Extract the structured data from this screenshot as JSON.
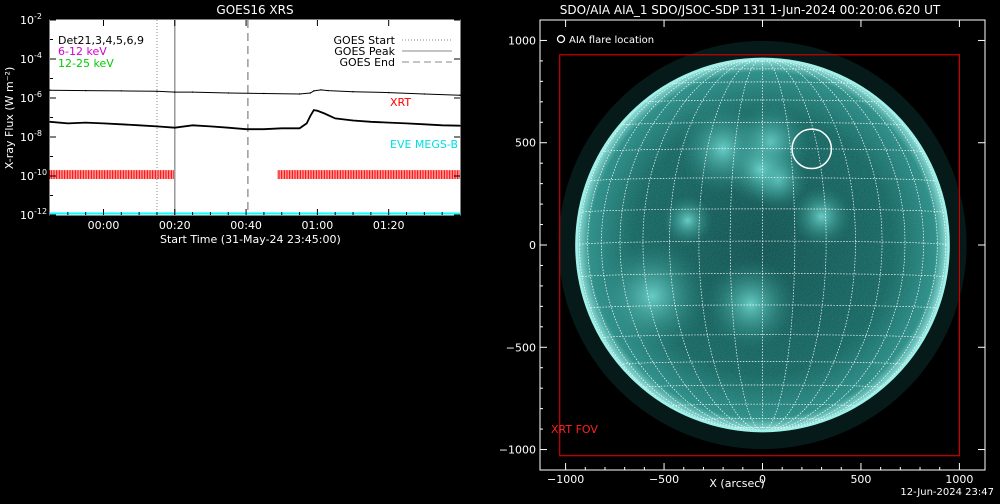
{
  "chart_data": [
    {
      "type": "line",
      "title": "GOES16 XRS",
      "ylabel": "X-ray Flux (W m⁻²)",
      "xlabel": "Start Time (31-May-24 23:45:00)",
      "x_unit": "minutes since 31-May-24 23:45:00",
      "xlim": [
        -15,
        100
      ],
      "ylim": [
        1e-12,
        0.01
      ],
      "yscale": "log",
      "x_ticks": [
        {
          "value": 0,
          "label": "00:00"
        },
        {
          "value": 20,
          "label": "00:20"
        },
        {
          "value": 40,
          "label": "00:40"
        },
        {
          "value": 60,
          "label": "01:00"
        },
        {
          "value": 80,
          "label": "01:20"
        }
      ],
      "y_ticks": [
        {
          "exp": -12,
          "base": "10",
          "power": "-12"
        },
        {
          "exp": -10,
          "base": "10",
          "power": "-10"
        },
        {
          "exp": -8,
          "base": "10",
          "power": "-8"
        },
        {
          "exp": -6,
          "base": "10",
          "power": "-6"
        },
        {
          "exp": -4,
          "base": "10",
          "power": "-4"
        },
        {
          "exp": -2,
          "base": "10",
          "power": "-2"
        }
      ],
      "legend_left": {
        "det": "Det21,3,4,5,6,9",
        "band1": "6-12 keV",
        "band2": "12-25 keV"
      },
      "legend_right": {
        "start": "GOES Start",
        "peak": "GOES Peak",
        "end": "GOES End"
      },
      "labels": {
        "xrt": "XRT",
        "eve": "EVE MEGS-B"
      },
      "vertical_lines": {
        "start": 15,
        "peak": 20,
        "end": 40.5
      },
      "series": [
        {
          "name": "long",
          "color": "#000000",
          "x": [
            -15,
            -5,
            5,
            15,
            20,
            25,
            35,
            45,
            55,
            58,
            59,
            61,
            63,
            70,
            80,
            90,
            100
          ],
          "y": [
            2.5e-06,
            2.4e-06,
            2.3e-06,
            2.2e-06,
            2e-06,
            2e-06,
            1.8e-06,
            1.7e-06,
            1.6e-06,
            1.8e-06,
            2.3e-06,
            2.6e-06,
            2.4e-06,
            2.1e-06,
            1.9e-06,
            1.6e-06,
            1.4e-06
          ]
        },
        {
          "name": "short",
          "color": "#000000",
          "x": [
            -15,
            -10,
            -5,
            0,
            5,
            10,
            15,
            20,
            25,
            30,
            35,
            40,
            45,
            50,
            55,
            57,
            58,
            59,
            60,
            62,
            65,
            70,
            75,
            80,
            85,
            90,
            95,
            100
          ],
          "y": [
            6e-08,
            5e-08,
            5.5e-08,
            5e-08,
            4.5e-08,
            4e-08,
            3.5e-08,
            3e-08,
            4e-08,
            3.5e-08,
            3e-08,
            2.5e-08,
            2.5e-08,
            2.8e-08,
            2.8e-08,
            5e-08,
            1.2e-07,
            2.4e-07,
            2.2e-07,
            1.6e-07,
            9e-08,
            7e-08,
            6e-08,
            5.5e-08,
            5e-08,
            4.5e-08,
            4e-08,
            3.8e-08
          ]
        }
      ],
      "coverage_bars": {
        "color": "#ff0000",
        "y_low": 7e-11,
        "y_high": 2e-10,
        "segments": [
          [
            -15,
            20
          ],
          [
            49,
            100
          ]
        ]
      },
      "eve_baseline": {
        "color": "#00ffff",
        "y": 1.2e-12
      }
    },
    {
      "type": "image",
      "title": "SDO/AIA AIA_1 SDO/JSOC-SDP 131  1-Jun-2024 00:20:06.620 UT",
      "xlabel": "X (arcsec)",
      "xlim": [
        -1130,
        1130
      ],
      "ylim": [
        -1100,
        1100
      ],
      "x_ticks": [
        -1000,
        -500,
        0,
        500,
        1000
      ],
      "y_ticks": [
        -1000,
        -500,
        0,
        500,
        1000
      ],
      "tick_labels": {
        "x": [
          "−1000",
          "−500",
          "0",
          "500",
          "1000"
        ],
        "y": [
          "−1000",
          "−500",
          "0",
          "500",
          "1000"
        ]
      },
      "solar_radius_arcsec": 945,
      "grid_spacing_deg": 10,
      "flare_legend": "AIA flare location",
      "flare_location": {
        "x": 250,
        "y": 470,
        "r": 100
      },
      "xrt_fov_label": "XRT FOV",
      "xrt_fov": {
        "x0": -1030,
        "x1": 1000,
        "y0": -1030,
        "y1": 930
      },
      "colors": {
        "disk": "#0f5653",
        "limb": "#9ff1ea",
        "fov": "#cc0000",
        "grid": "#ffffff"
      }
    }
  ],
  "footer": {
    "timestamp": "12-Jun-2024 23:47"
  }
}
